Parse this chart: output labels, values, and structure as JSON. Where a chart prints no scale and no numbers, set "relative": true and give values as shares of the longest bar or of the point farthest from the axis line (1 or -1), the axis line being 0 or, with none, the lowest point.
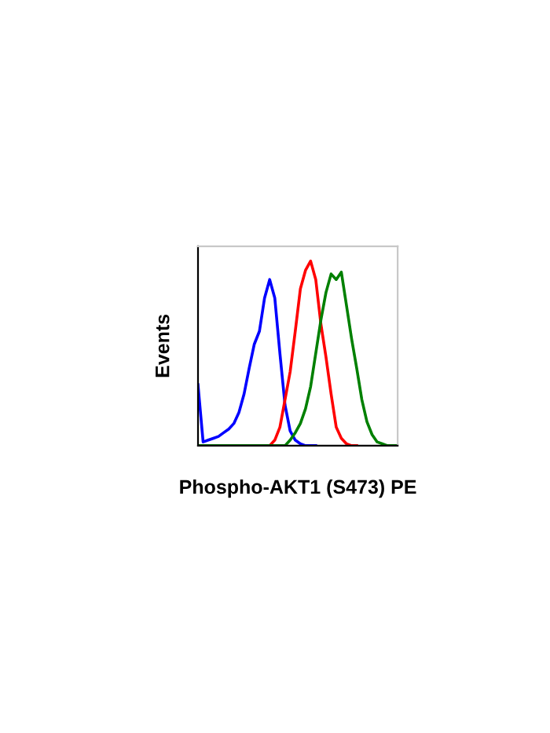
{
  "chart_data": {
    "type": "line",
    "relative": true,
    "xlabel": "Phospho-AKT1 (S473) PE",
    "ylabel": "Events",
    "grid": false,
    "legend": false,
    "marker": "none",
    "line_style": "solid",
    "categories": [
      null,
      null,
      null,
      null,
      null,
      null,
      null,
      null,
      null,
      null,
      null,
      null,
      null,
      null,
      null,
      null,
      null,
      null,
      null,
      null,
      null,
      null,
      null,
      null,
      null,
      null,
      null,
      null,
      null,
      null,
      null,
      null,
      null,
      null,
      null,
      null,
      null,
      null,
      null,
      null
    ],
    "series": [
      {
        "color": "#0000ff",
        "values": [
          0.33,
          0.02,
          0.03,
          0.04,
          0.05,
          0.07,
          0.09,
          0.12,
          0.18,
          0.28,
          0.42,
          0.55,
          0.62,
          0.8,
          0.9,
          0.8,
          0.5,
          0.22,
          0.08,
          0.03,
          0.01,
          0,
          0,
          0,
          null,
          null,
          null,
          null,
          null,
          null,
          null,
          null,
          null,
          null,
          null,
          null,
          null,
          null,
          null,
          null
        ]
      },
      {
        "color": "#ff0000",
        "values": [
          null,
          null,
          null,
          null,
          null,
          null,
          null,
          null,
          null,
          null,
          null,
          null,
          null,
          0,
          0,
          0.03,
          0.1,
          0.25,
          0.4,
          0.62,
          0.85,
          0.95,
          1.0,
          0.9,
          0.66,
          0.48,
          0.28,
          0.1,
          0.04,
          0.01,
          0,
          0,
          null,
          null,
          null,
          null,
          null,
          null,
          null,
          null
        ]
      },
      {
        "color": "#008000",
        "values": [
          0,
          0,
          0,
          0,
          0,
          0,
          0,
          0,
          0,
          0,
          0,
          0,
          0,
          0,
          0,
          0,
          0,
          0,
          0.03,
          0.07,
          0.12,
          0.2,
          0.32,
          0.5,
          0.68,
          0.83,
          0.93,
          0.9,
          0.94,
          0.76,
          0.58,
          0.42,
          0.25,
          0.13,
          0.06,
          0.02,
          0.01,
          0,
          0,
          0
        ]
      }
    ]
  }
}
